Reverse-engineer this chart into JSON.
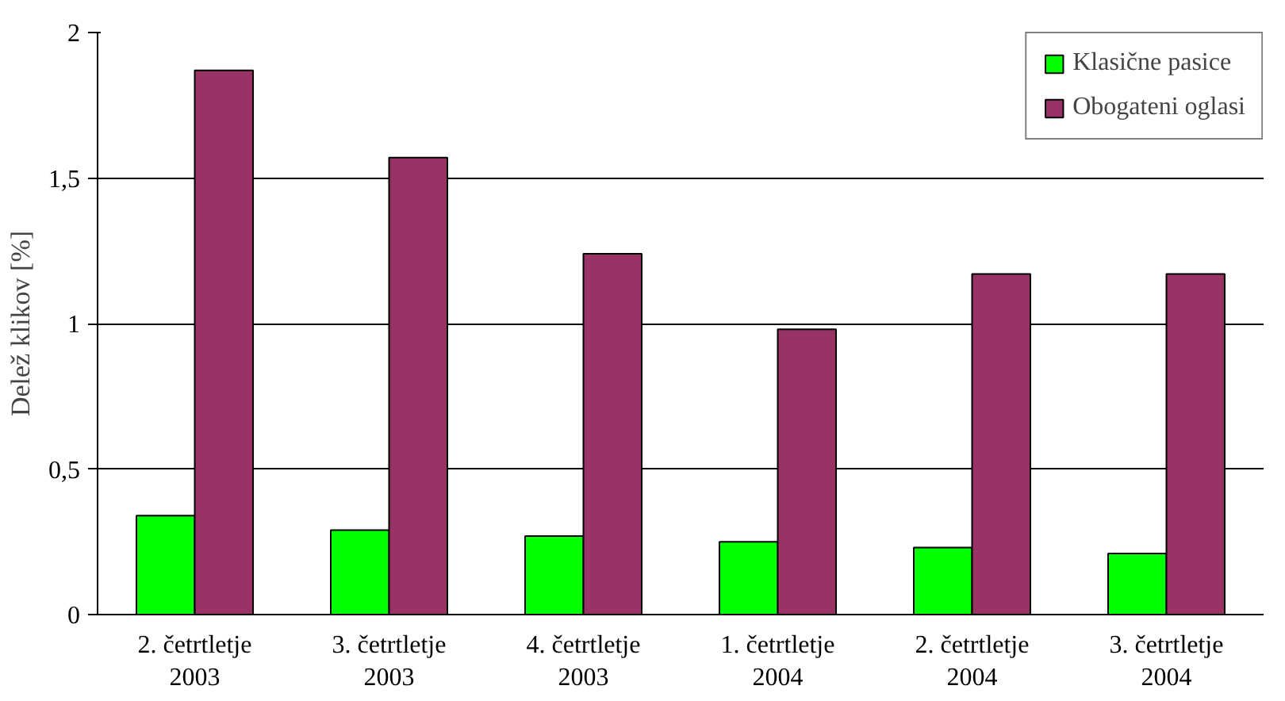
{
  "chart_data": {
    "type": "bar",
    "ylabel": "Delež klikov [%]",
    "categories": [
      "2. četrtletje\n2003",
      "3. četrtletje\n2003",
      "4. četrtletje\n2003",
      "1. četrtletje\n2004",
      "2. četrtletje\n2004",
      "3. četrtletje\n2004"
    ],
    "series": [
      {
        "name": "Klasične pasice",
        "color": "#00ff00",
        "values": [
          0.34,
          0.29,
          0.27,
          0.25,
          0.23,
          0.21
        ]
      },
      {
        "name": "Obogateni oglasi",
        "color": "#993366",
        "values": [
          1.87,
          1.57,
          1.24,
          0.98,
          1.17,
          1.17
        ]
      }
    ],
    "ylim": [
      0,
      2
    ],
    "yticks": [
      0,
      {
        "value": 0.5,
        "label": "0,5"
      },
      1,
      {
        "value": 1.5,
        "label": "1,5"
      },
      2
    ],
    "grid": "y",
    "legend": "top right"
  }
}
